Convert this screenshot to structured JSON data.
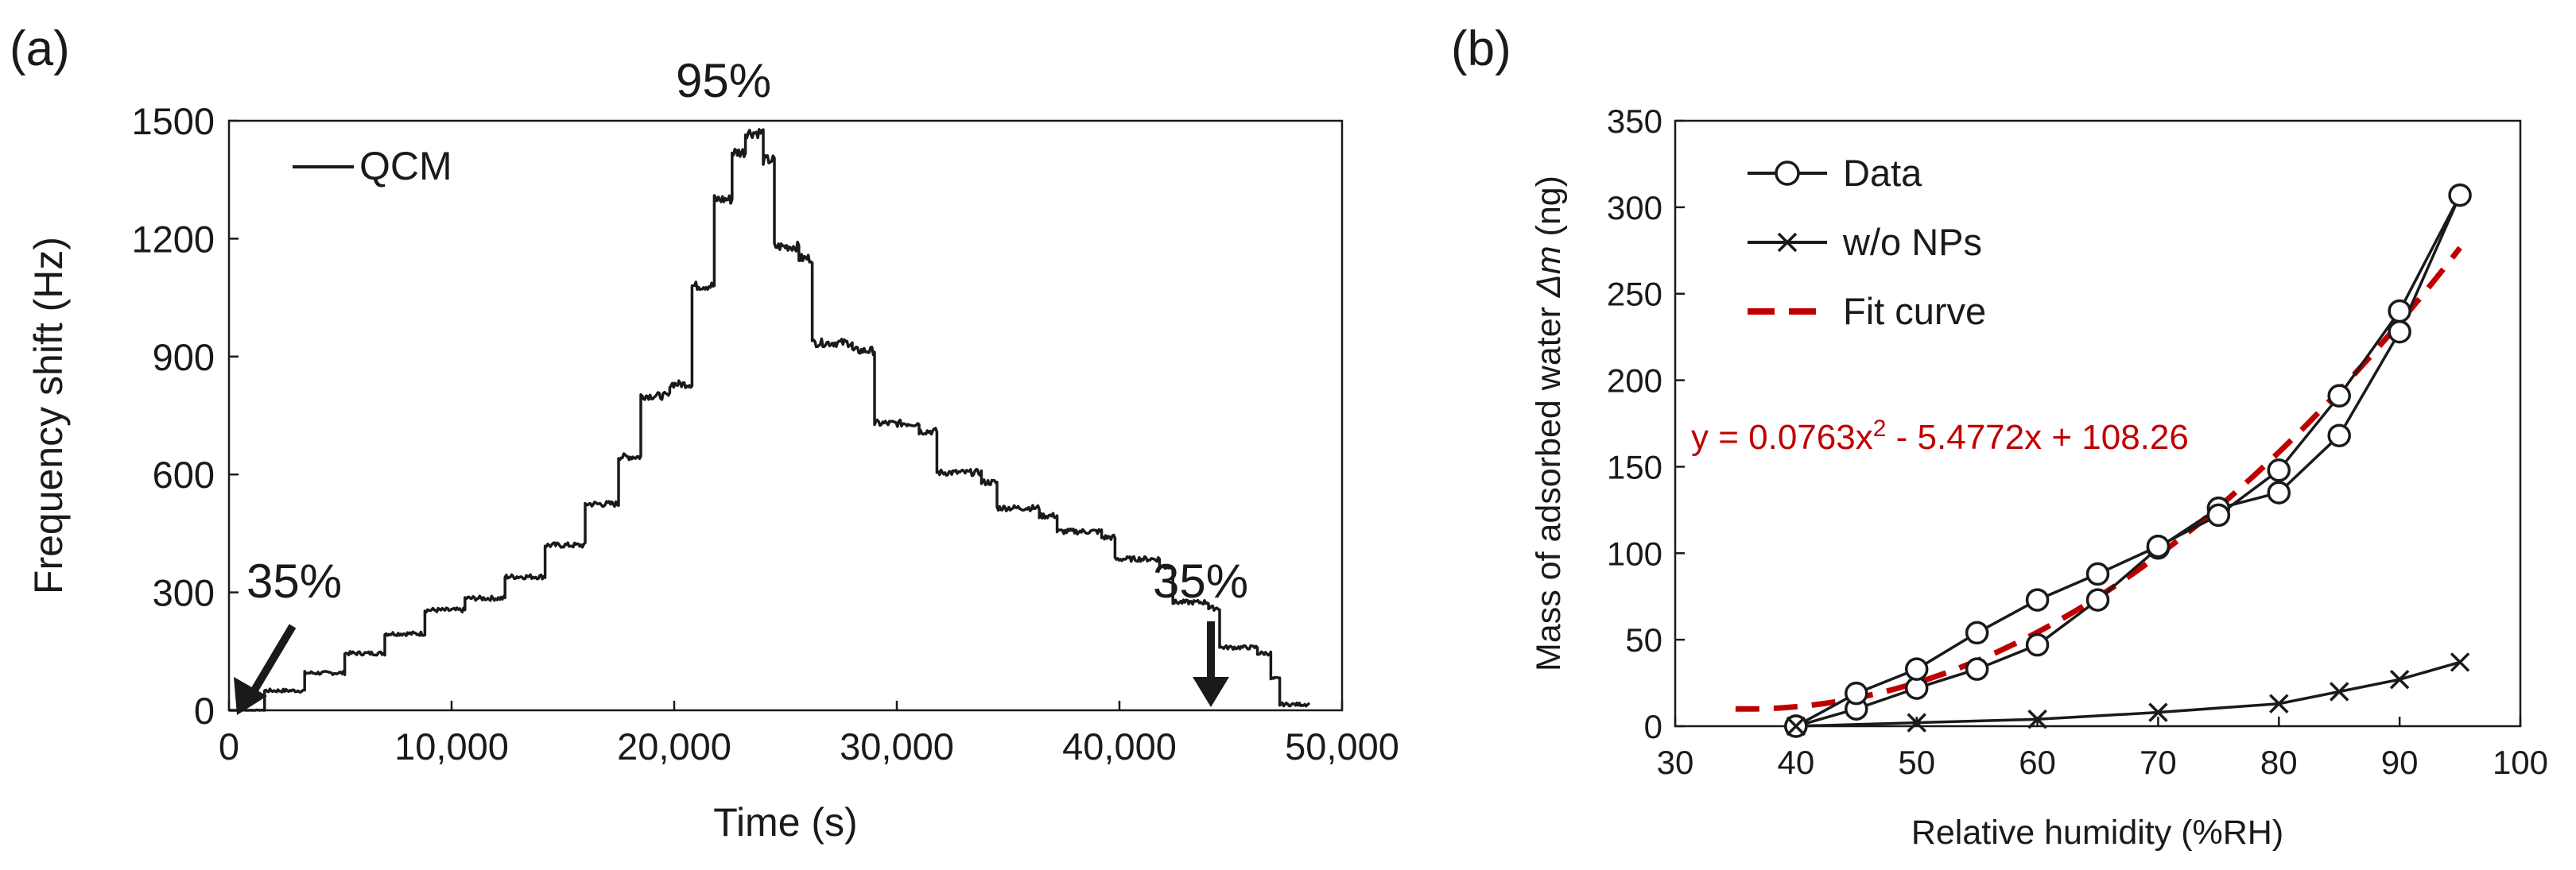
{
  "panels": {
    "a_label": "(a)",
    "b_label": "(b)"
  },
  "colors": {
    "ink": "#1a1a1a",
    "fit": "#c00000",
    "background": "#ffffff"
  },
  "chart_data": [
    {
      "type": "line",
      "panel": "(a)",
      "title": "",
      "xlabel": "Time (s)",
      "ylabel": "Frequency shift (Hz)",
      "xlim": [
        0,
        50000
      ],
      "ylim": [
        0,
        1500
      ],
      "x_ticks": [
        0,
        10000,
        20000,
        30000,
        40000,
        50000
      ],
      "x_tick_labels": [
        "0",
        "10,000",
        "20,000",
        "30,000",
        "40,000",
        "50,000"
      ],
      "y_ticks": [
        0,
        300,
        600,
        900,
        1200,
        1500
      ],
      "y_tick_labels": [
        "0",
        "300",
        "600",
        "900",
        "1200",
        "1500"
      ],
      "legend": {
        "position": "top-left",
        "entries": [
          "QCM"
        ]
      },
      "annotations": [
        {
          "text": "95%",
          "x": 23500,
          "y": 1500
        },
        {
          "text": "35%",
          "x": 600,
          "y": 0,
          "arrow": true
        },
        {
          "text": "35%",
          "x": 47300,
          "y": 0,
          "arrow": true
        }
      ],
      "series": [
        {
          "name": "QCM",
          "steps": [
            [
              0,
              0
            ],
            [
              1000,
              0
            ],
            [
              1600,
              50
            ],
            [
              3400,
              95
            ],
            [
              5200,
              145
            ],
            [
              7000,
              195
            ],
            [
              8800,
              255
            ],
            [
              10600,
              285
            ],
            [
              12400,
              340
            ],
            [
              14200,
              420
            ],
            [
              16000,
              525
            ],
            [
              17500,
              645
            ],
            [
              18500,
              800
            ],
            [
              19800,
              830
            ],
            [
              20800,
              1080
            ],
            [
              21800,
              1300
            ],
            [
              22600,
              1420
            ],
            [
              23200,
              1470
            ],
            [
              24000,
              1400
            ],
            [
              24500,
              1180
            ],
            [
              25600,
              1150
            ],
            [
              26200,
              935
            ],
            [
              28000,
              915
            ],
            [
              29000,
              730
            ],
            [
              31000,
              710
            ],
            [
              31800,
              605
            ],
            [
              33800,
              580
            ],
            [
              34500,
              515
            ],
            [
              36400,
              495
            ],
            [
              37200,
              455
            ],
            [
              39200,
              440
            ],
            [
              39800,
              385
            ],
            [
              41800,
              365
            ],
            [
              42400,
              275
            ],
            [
              44000,
              260
            ],
            [
              44500,
              160
            ],
            [
              46200,
              145
            ],
            [
              46800,
              80
            ],
            [
              47200,
              15
            ],
            [
              48500,
              15
            ]
          ],
          "noise_amplitude": 20
        }
      ]
    },
    {
      "type": "line",
      "panel": "(b)",
      "title": "",
      "xlabel": "Relative humidity (%RH)",
      "ylabel": "Mass of adsorbed water Δm (ng)",
      "xlim": [
        30,
        100
      ],
      "ylim": [
        0,
        350
      ],
      "x_ticks": [
        30,
        40,
        50,
        60,
        70,
        80,
        90,
        100
      ],
      "x_tick_labels": [
        "30",
        "40",
        "50",
        "60",
        "70",
        "80",
        "90",
        "100"
      ],
      "y_ticks": [
        0,
        50,
        100,
        150,
        200,
        250,
        300,
        350
      ],
      "y_tick_labels": [
        "0",
        "50",
        "100",
        "150",
        "200",
        "250",
        "300",
        "350"
      ],
      "legend": {
        "position": "top-left",
        "entries": [
          "Data",
          "w/o NPs",
          "Fit curve"
        ]
      },
      "fit_equation": {
        "text": "y = 0.0763x",
        "sup": "2",
        "rest": " - 5.4772x + 108.26"
      },
      "series": [
        {
          "name": "Data",
          "marker": "circle",
          "x": [
            40,
            45,
            50,
            55,
            60,
            65,
            70,
            75,
            80,
            85,
            90,
            95,
            90,
            85,
            80,
            75,
            70,
            65,
            60,
            55,
            50,
            45,
            40
          ],
          "y": [
            0,
            10,
            22,
            33,
            47,
            73,
            103,
            126,
            135,
            168,
            228,
            307,
            240,
            191,
            148,
            122,
            104,
            88,
            73,
            54,
            33,
            19,
            0
          ]
        },
        {
          "name": "w/o NPs",
          "marker": "x",
          "x": [
            40,
            50,
            60,
            70,
            80,
            85,
            90,
            95
          ],
          "y": [
            0,
            2,
            4,
            8,
            13,
            20,
            27,
            37
          ]
        },
        {
          "name": "Fit curve",
          "style": "dashed",
          "coefficients": [
            0.0763,
            -5.4772,
            108.26
          ],
          "x_range": [
            35,
            95
          ]
        }
      ]
    }
  ]
}
